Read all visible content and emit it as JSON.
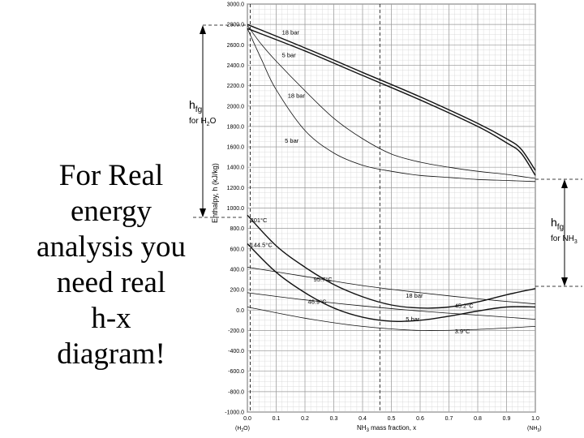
{
  "slide": {
    "note_lines": [
      "For Real",
      "energy",
      "analysis you",
      "need real",
      "h-x",
      "diagram!"
    ],
    "hfg_h2o": {
      "main": "h",
      "sub": "fg",
      "label_prefix": "for H",
      "label_sub": "2",
      "label_suffix": "O"
    },
    "hfg_nh3": {
      "main": "h",
      "sub": "fg",
      "label_prefix": "for NH",
      "label_sub": "3"
    }
  },
  "chart_data": {
    "type": "line",
    "title": "",
    "xlabel_prefix": "NH",
    "xlabel_sub": "3",
    "xlabel_suffix": " mass fraction, x",
    "ylabel": "Enthalpy, h (kJ/kg)",
    "xlim": [
      0,
      1
    ],
    "ylim": [
      -1000,
      3000
    ],
    "grid": true,
    "x_ticks": [
      "0.0",
      "0.1",
      "0.2",
      "0.3",
      "0.4",
      "0.5",
      "0.6",
      "0.7",
      "0.8",
      "0.9",
      "1.0"
    ],
    "x_end_labels": {
      "left": "(H2O)",
      "right": "(NH3)"
    },
    "y_ticks": [
      3000,
      2800,
      2600,
      2400,
      2200,
      2000,
      1800,
      1600,
      1400,
      1200,
      1000,
      800,
      600,
      400,
      200,
      0,
      -200,
      -400,
      -600,
      -800,
      -1000
    ],
    "y_tick_labels": [
      "3000.0",
      "2800.0",
      "2600.0",
      "2400.0",
      "2200.0",
      "2000.0",
      "1800.0",
      "1600.0",
      "1400.0",
      "1200.0",
      "1000.0",
      "800.0",
      "600.0",
      "400.0",
      "200.0",
      "0.0",
      "-200.0",
      "-400.0",
      "-600.0",
      "-800.0",
      "-1000.0"
    ],
    "marker_x": 0.46,
    "series": [
      {
        "name": "18 bar",
        "kind": "vapor",
        "x": [
          0,
          0.2,
          0.4,
          0.6,
          0.8,
          0.9,
          0.95,
          1.0
        ],
        "y": [
          2800,
          2570,
          2330,
          2090,
          1830,
          1680,
          1580,
          1370
        ]
      },
      {
        "name": "5 bar",
        "kind": "vapor",
        "x": [
          0,
          0.2,
          0.4,
          0.6,
          0.8,
          0.9,
          0.95,
          1.0
        ],
        "y": [
          2760,
          2540,
          2300,
          2060,
          1800,
          1640,
          1540,
          1320
        ]
      },
      {
        "name": "18 bar",
        "kind": "dew",
        "x": [
          0,
          0.05,
          0.1,
          0.2,
          0.3,
          0.4,
          0.5,
          0.6,
          0.7,
          0.8,
          0.9,
          1.0
        ],
        "y": [
          2790,
          2600,
          2440,
          2150,
          1880,
          1680,
          1530,
          1450,
          1400,
          1360,
          1330,
          1290
        ]
      },
      {
        "name": "5 bar",
        "kind": "dew",
        "x": [
          0,
          0.05,
          0.1,
          0.2,
          0.3,
          0.4,
          0.5,
          0.6,
          0.7,
          0.8,
          0.9,
          1.0
        ],
        "y": [
          2760,
          2450,
          2160,
          1760,
          1540,
          1420,
          1360,
          1320,
          1300,
          1280,
          1270,
          1260
        ]
      },
      {
        "name": "201°C",
        "kind": "isotherm",
        "x": [
          0,
          0.2,
          0.4,
          0.6,
          0.8,
          1.0
        ],
        "y": [
          420,
          330,
          240,
          170,
          110,
          60
        ]
      },
      {
        "name": "144.5°C",
        "kind": "isotherm",
        "x": [
          0,
          0.2,
          0.4,
          0.6,
          0.8,
          1.0
        ],
        "y": [
          170,
          100,
          40,
          -10,
          -50,
          -90
        ]
      },
      {
        "name": "95.7°C",
        "kind": "isotherm",
        "x": [
          0,
          0.2,
          0.4,
          0.6,
          0.8,
          1.0
        ],
        "y": [
          30,
          -80,
          -160,
          -200,
          -190,
          -160
        ]
      },
      {
        "name": "18 bar",
        "kind": "bubble",
        "x": [
          0,
          0.1,
          0.2,
          0.3,
          0.4,
          0.5,
          0.6,
          0.7,
          0.8,
          0.9,
          1.0
        ],
        "y": [
          930,
          630,
          420,
          250,
          130,
          50,
          20,
          30,
          80,
          150,
          210
        ]
      },
      {
        "name": "5 bar",
        "kind": "bubble",
        "x": [
          0,
          0.1,
          0.2,
          0.3,
          0.4,
          0.5,
          0.6,
          0.7,
          0.8,
          0.9,
          1.0
        ],
        "y": [
          650,
          370,
          170,
          20,
          -70,
          -110,
          -100,
          -60,
          -10,
          30,
          30
        ]
      }
    ],
    "annotations": [
      {
        "text": "18 bar",
        "x": 0.12,
        "y": 2700
      },
      {
        "text": "5 bar",
        "x": 0.12,
        "y": 2480
      },
      {
        "text": "18 bar",
        "x": 0.14,
        "y": 2080
      },
      {
        "text": "5 bar",
        "x": 0.13,
        "y": 1640
      },
      {
        "text": "201°C",
        "x": 0.01,
        "y": 860
      },
      {
        "text": "144.5°C",
        "x": 0.01,
        "y": 620
      },
      {
        "text": "95.7°C",
        "x": 0.23,
        "y": 280
      },
      {
        "text": "46.9°C",
        "x": 0.21,
        "y": 60
      },
      {
        "text": "18 bar",
        "x": 0.55,
        "y": 120
      },
      {
        "text": "45.2°C",
        "x": 0.72,
        "y": 20
      },
      {
        "text": "5 bar",
        "x": 0.55,
        "y": -110
      },
      {
        "text": "3.9°C",
        "x": 0.72,
        "y": -230
      }
    ]
  }
}
